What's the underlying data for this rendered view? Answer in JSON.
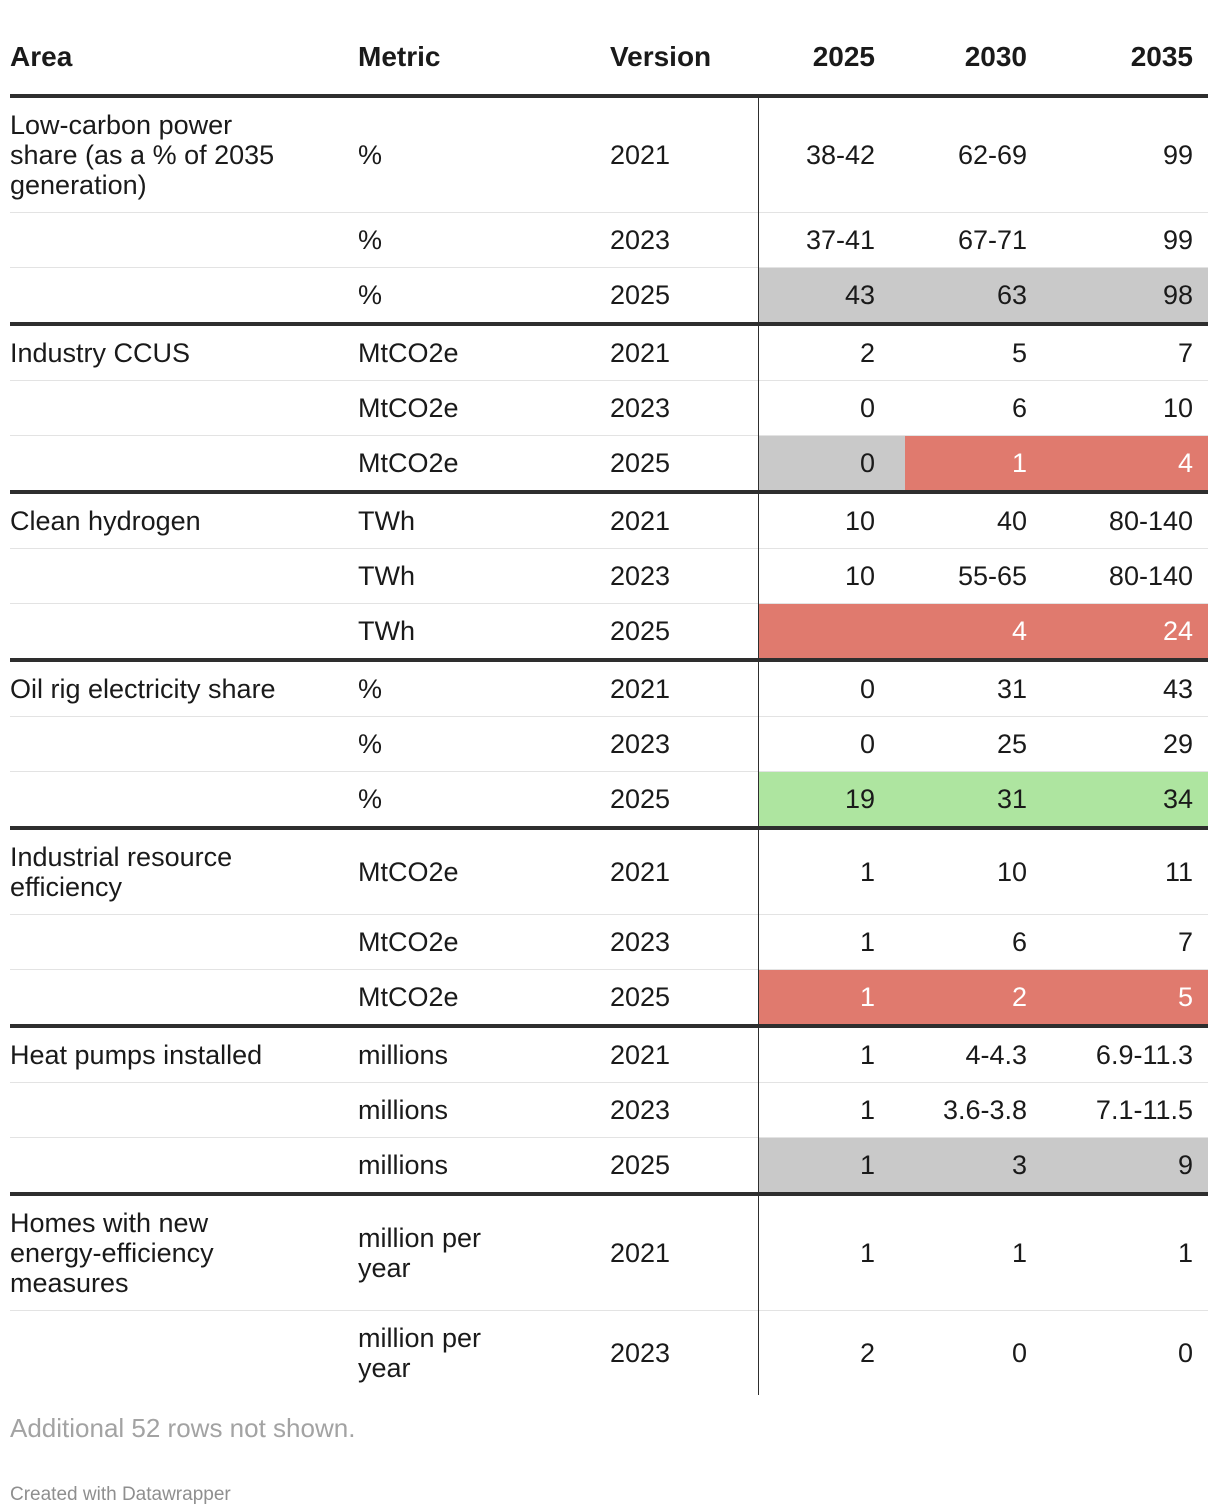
{
  "colors": {
    "text": "#1a1a1a",
    "text_on_red": "#ffffff",
    "gray": "#c9c9c9",
    "red": "#e07a6e",
    "green": "#aee5a0",
    "thick_border": "#2e2e2e",
    "thin_border": "#e3e3e3",
    "muted": "#a3a3a3",
    "muted2": "#8f8f8f"
  },
  "table": {
    "columns": [
      {
        "label": "Area",
        "align": "left"
      },
      {
        "label": "Metric",
        "align": "left"
      },
      {
        "label": "Version",
        "align": "left"
      },
      {
        "label": "2025",
        "align": "right"
      },
      {
        "label": "2030",
        "align": "right"
      },
      {
        "label": "2035",
        "align": "right"
      }
    ],
    "groups": [
      {
        "area": "Low-carbon power share (as a % of 2035 generation)",
        "end_border": true,
        "rows": [
          {
            "metric": "%",
            "version": "2021",
            "values": [
              "38-42",
              "62-69",
              "99"
            ],
            "highlights": [
              null,
              null,
              null
            ]
          },
          {
            "metric": "%",
            "version": "2023",
            "values": [
              "37-41",
              "67-71",
              "99"
            ],
            "highlights": [
              null,
              null,
              null
            ]
          },
          {
            "metric": "%",
            "version": "2025",
            "values": [
              "43",
              "63",
              "98"
            ],
            "highlights": [
              "gray",
              "gray",
              "gray"
            ]
          }
        ]
      },
      {
        "area": "Industry CCUS",
        "end_border": true,
        "rows": [
          {
            "metric": "MtCO2e",
            "version": "2021",
            "values": [
              "2",
              "5",
              "7"
            ],
            "highlights": [
              null,
              null,
              null
            ]
          },
          {
            "metric": "MtCO2e",
            "version": "2023",
            "values": [
              "0",
              "6",
              "10"
            ],
            "highlights": [
              null,
              null,
              null
            ]
          },
          {
            "metric": "MtCO2e",
            "version": "2025",
            "values": [
              "0",
              "1",
              "4"
            ],
            "highlights": [
              "gray",
              "red",
              "red"
            ]
          }
        ]
      },
      {
        "area": "Clean hydrogen",
        "end_border": true,
        "rows": [
          {
            "metric": "TWh",
            "version": "2021",
            "values": [
              "10",
              "40",
              "80-140"
            ],
            "highlights": [
              null,
              null,
              null
            ]
          },
          {
            "metric": "TWh",
            "version": "2023",
            "values": [
              "10",
              "55-65",
              "80-140"
            ],
            "highlights": [
              null,
              null,
              null
            ]
          },
          {
            "metric": "TWh",
            "version": "2025",
            "values": [
              "",
              "4",
              "24"
            ],
            "highlights": [
              "red",
              "red",
              "red"
            ]
          }
        ]
      },
      {
        "area": "Oil rig electricity share",
        "end_border": true,
        "rows": [
          {
            "metric": "%",
            "version": "2021",
            "values": [
              "0",
              "31",
              "43"
            ],
            "highlights": [
              null,
              null,
              null
            ]
          },
          {
            "metric": "%",
            "version": "2023",
            "values": [
              "0",
              "25",
              "29"
            ],
            "highlights": [
              null,
              null,
              null
            ]
          },
          {
            "metric": "%",
            "version": "2025",
            "values": [
              "19",
              "31",
              "34"
            ],
            "highlights": [
              "green",
              "green",
              "green"
            ]
          }
        ]
      },
      {
        "area": "Industrial resource efficiency",
        "end_border": true,
        "rows": [
          {
            "metric": "MtCO2e",
            "version": "2021",
            "values": [
              "1",
              "10",
              "11"
            ],
            "highlights": [
              null,
              null,
              null
            ]
          },
          {
            "metric": "MtCO2e",
            "version": "2023",
            "values": [
              "1",
              "6",
              "7"
            ],
            "highlights": [
              null,
              null,
              null
            ]
          },
          {
            "metric": "MtCO2e",
            "version": "2025",
            "values": [
              "1",
              "2",
              "5"
            ],
            "highlights": [
              "red",
              "red",
              "red"
            ]
          }
        ]
      },
      {
        "area": "Heat pumps installed",
        "end_border": true,
        "rows": [
          {
            "metric": "millions",
            "version": "2021",
            "values": [
              "1",
              "4-4.3",
              "6.9-11.3"
            ],
            "highlights": [
              null,
              null,
              null
            ]
          },
          {
            "metric": "millions",
            "version": "2023",
            "values": [
              "1",
              "3.6-3.8",
              "7.1-11.5"
            ],
            "highlights": [
              null,
              null,
              null
            ]
          },
          {
            "metric": "millions",
            "version": "2025",
            "values": [
              "1",
              "3",
              "9"
            ],
            "highlights": [
              "gray",
              "gray",
              "gray"
            ]
          }
        ]
      },
      {
        "area": "Homes with new energy-efficiency measures",
        "end_border": false,
        "rows": [
          {
            "metric": "million per year",
            "version": "2021",
            "values": [
              "1",
              "1",
              "1"
            ],
            "highlights": [
              null,
              null,
              null
            ]
          },
          {
            "metric": "million per year",
            "version": "2023",
            "values": [
              "2",
              "0",
              "0"
            ],
            "highlights": [
              null,
              null,
              null
            ]
          }
        ]
      }
    ]
  },
  "footer": {
    "note": "Additional 52 rows not shown.",
    "attribution": "Created with Datawrapper"
  },
  "chart_data": {
    "type": "table",
    "columns": [
      "Area",
      "Metric",
      "Version",
      "2025",
      "2030",
      "2035"
    ],
    "rows": [
      [
        "Low-carbon power share (as a % of 2035 generation)",
        "%",
        "2021",
        "38-42",
        "62-69",
        "99"
      ],
      [
        "",
        "%",
        "2023",
        "37-41",
        "67-71",
        "99"
      ],
      [
        "",
        "%",
        "2025",
        "43",
        "63",
        "98"
      ],
      [
        "Industry CCUS",
        "MtCO2e",
        "2021",
        "2",
        "5",
        "7"
      ],
      [
        "",
        "MtCO2e",
        "2023",
        "0",
        "6",
        "10"
      ],
      [
        "",
        "MtCO2e",
        "2025",
        "0",
        "1",
        "4"
      ],
      [
        "Clean hydrogen",
        "TWh",
        "2021",
        "10",
        "40",
        "80-140"
      ],
      [
        "",
        "TWh",
        "2023",
        "10",
        "55-65",
        "80-140"
      ],
      [
        "",
        "TWh",
        "2025",
        "",
        "4",
        "24"
      ],
      [
        "Oil rig electricity share",
        "%",
        "2021",
        "0",
        "31",
        "43"
      ],
      [
        "",
        "%",
        "2023",
        "0",
        "25",
        "29"
      ],
      [
        "",
        "%",
        "2025",
        "19",
        "31",
        "34"
      ],
      [
        "Industrial resource efficiency",
        "MtCO2e",
        "2021",
        "1",
        "10",
        "11"
      ],
      [
        "",
        "MtCO2e",
        "2023",
        "1",
        "6",
        "7"
      ],
      [
        "",
        "MtCO2e",
        "2025",
        "1",
        "2",
        "5"
      ],
      [
        "Heat pumps installed",
        "millions",
        "2021",
        "1",
        "4-4.3",
        "6.9-11.3"
      ],
      [
        "",
        "millions",
        "2023",
        "1",
        "3.6-3.8",
        "7.1-11.5"
      ],
      [
        "",
        "millions",
        "2025",
        "1",
        "3",
        "9"
      ],
      [
        "Homes with new energy-efficiency measures",
        "million per year",
        "2021",
        "1",
        "1",
        "1"
      ],
      [
        "",
        "million per year",
        "2023",
        "2",
        "0",
        "0"
      ]
    ],
    "cell_highlights": {
      "gray_rows": [
        "Low-carbon power share 2025",
        "Heat pumps installed 2025"
      ],
      "mixed_rows": [
        "Industry CCUS 2025: 2025=gray, 2030=red, 2035=red"
      ],
      "red_rows": [
        "Clean hydrogen 2025 (2025 cell empty)",
        "Industrial resource efficiency 2025"
      ],
      "green_rows": [
        "Oil rig electricity share 2025"
      ]
    },
    "title": "",
    "notes": "Additional 52 rows not shown."
  }
}
